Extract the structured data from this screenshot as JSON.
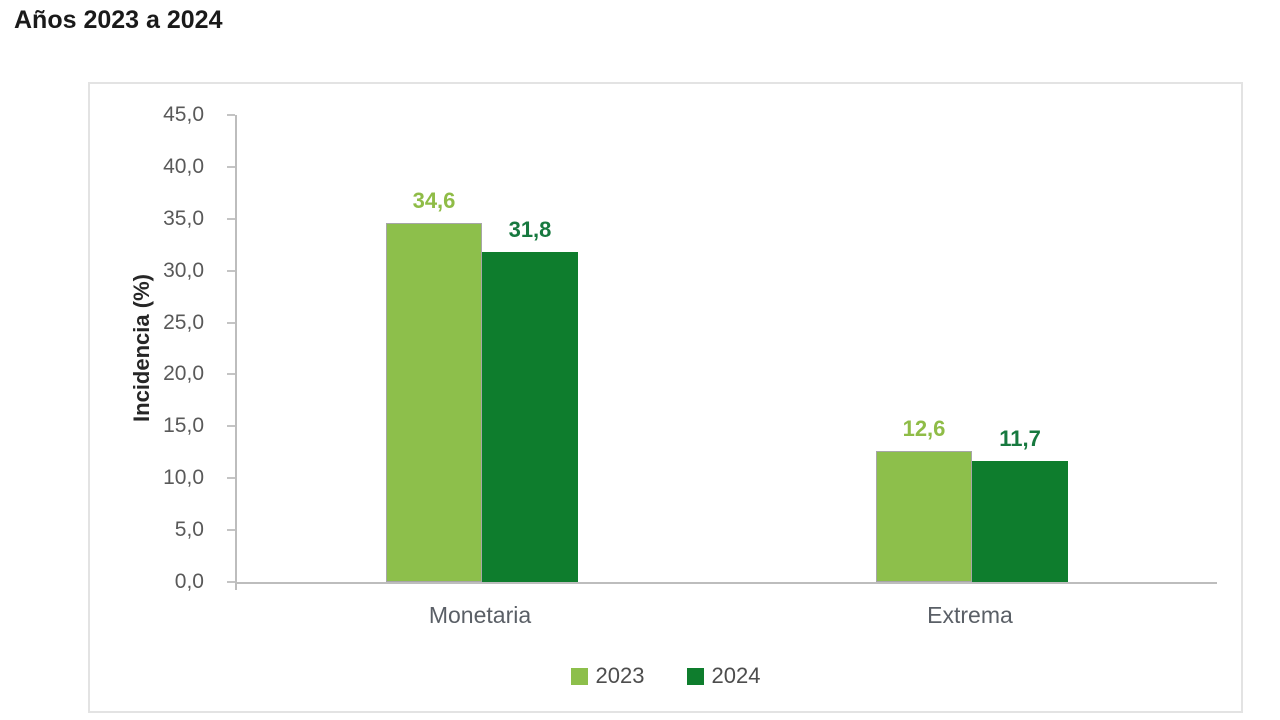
{
  "title": "Años 2023 a 2024",
  "chart_data": {
    "type": "bar",
    "title": "Años 2023 a 2024",
    "ylabel": "Incidencia (%)",
    "xlabel": "",
    "ylim": [
      0,
      45
    ],
    "yticks": [
      "45,0",
      "40,0",
      "35,0",
      "30,0",
      "25,0",
      "20,0",
      "15,0",
      "10,0",
      "5,0",
      "0,0"
    ],
    "categories": [
      "Monetaria",
      "Extrema"
    ],
    "series": [
      {
        "name": "2023",
        "color": "#8dbf4b",
        "border_color": "#a6a6a6",
        "label_color": "#8fbc47",
        "values": [
          34.6,
          12.6
        ],
        "value_labels": [
          "34,6",
          "12,6"
        ]
      },
      {
        "name": "2024",
        "color": "#0e7d2d",
        "border_color": "",
        "label_color": "#17793f",
        "values": [
          31.8,
          11.7
        ],
        "value_labels": [
          "31,8",
          "11,7"
        ]
      }
    ],
    "grid": false,
    "legend_position": "bottom"
  }
}
